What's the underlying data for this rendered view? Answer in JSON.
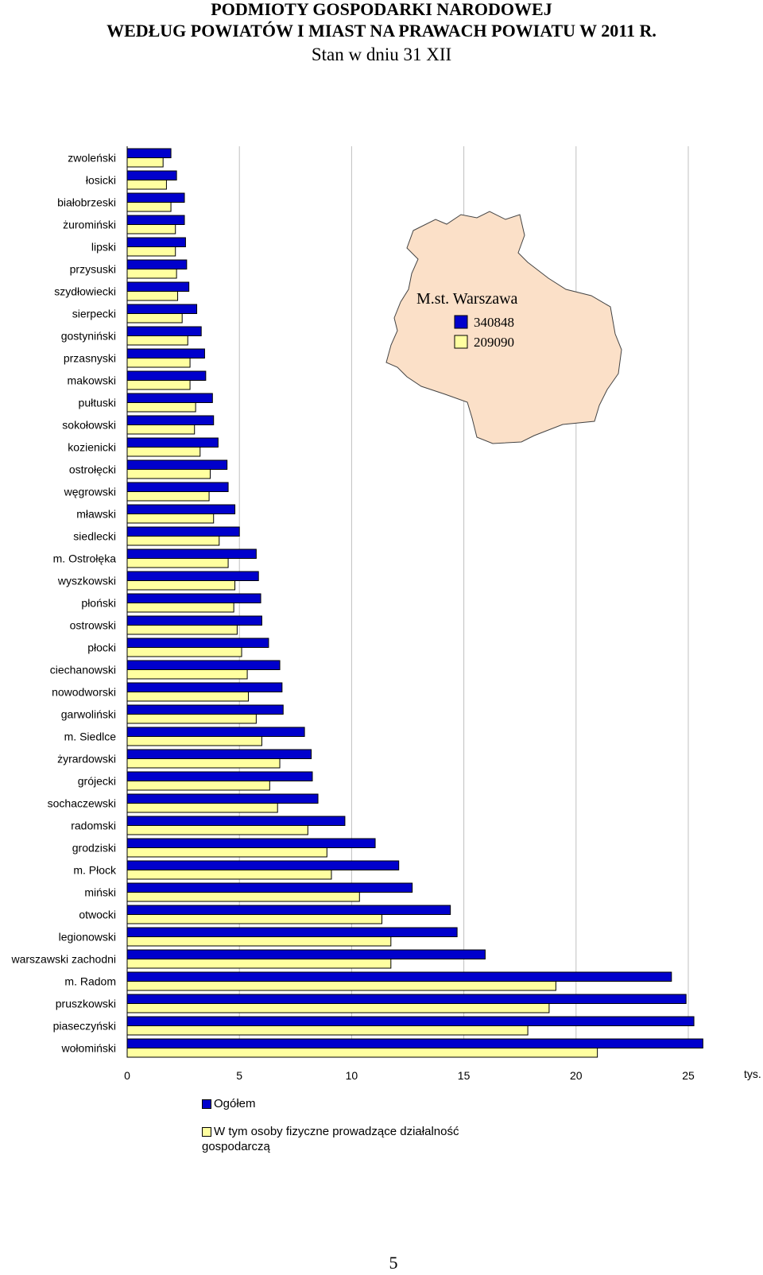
{
  "header": {
    "line1": "PODMIOTY GOSPODARKI NARODOWEJ",
    "line2": "WEDŁUG POWIATÓW I MIAST NA PRAWACH POWIATU W 2011 R.",
    "line3": "Stan w dniu 31 XII"
  },
  "colors": {
    "series1": "#0000cc",
    "series2": "#ffffa0",
    "map_fill": "#fbe0c8",
    "grid": "#c0c0c0"
  },
  "chart_data": {
    "type": "bar",
    "orientation": "horizontal",
    "unit": "tys.",
    "xlim": [
      0,
      25
    ],
    "xticks": [
      0,
      5,
      10,
      15,
      20,
      25
    ],
    "grid": true,
    "categories": [
      "zwoleński",
      "łosicki",
      "białobrzeski",
      "żuromiński",
      "lipski",
      "przysuski",
      "szydłowiecki",
      "sierpecki",
      "gostyniński",
      "przasnyski",
      "makowski",
      "pułtuski",
      "sokołowski",
      "kozienicki",
      "ostrołęcki",
      "węgrowski",
      "mławski",
      "siedlecki",
      "m. Ostrołęka",
      "wyszkowski",
      "płoński",
      "ostrowski",
      "płocki",
      "ciechanowski",
      "nowodworski",
      "garwoliński",
      "m. Siedlce",
      "żyrardowski",
      "grójecki",
      "sochaczewski",
      "radomski",
      "grodziski",
      "m. Płock",
      "miński",
      "otwocki",
      "legionowski",
      "warszawski zachodni",
      "m. Radom",
      "pruszkowski",
      "piaseczyński",
      "wołomiński"
    ],
    "series": [
      {
        "name": "Ogółem",
        "values": [
          1.95,
          2.2,
          2.55,
          2.55,
          2.6,
          2.65,
          2.75,
          3.1,
          3.3,
          3.45,
          3.5,
          3.8,
          3.85,
          4.05,
          4.45,
          4.5,
          4.8,
          5.0,
          5.75,
          5.85,
          5.95,
          6.0,
          6.3,
          6.8,
          6.9,
          6.95,
          7.9,
          8.2,
          8.25,
          8.5,
          9.7,
          11.05,
          12.1,
          12.7,
          14.4,
          14.7,
          15.95,
          24.25,
          24.9,
          25.25,
          25.65
        ]
      },
      {
        "name": "W tym osoby fizyczne prowadzące działalność gospodarczą",
        "values": [
          1.6,
          1.75,
          1.95,
          2.15,
          2.15,
          2.2,
          2.25,
          2.45,
          2.7,
          2.8,
          2.8,
          3.05,
          3.0,
          3.25,
          3.7,
          3.65,
          3.85,
          4.1,
          4.5,
          4.8,
          4.75,
          4.9,
          5.1,
          5.35,
          5.4,
          5.75,
          6.0,
          6.8,
          6.35,
          6.7,
          8.05,
          8.9,
          9.1,
          10.35,
          11.35,
          11.75,
          11.75,
          19.1,
          18.8,
          17.85,
          20.95
        ]
      }
    ],
    "inset": {
      "label": "M.st. Warszawa",
      "values": [
        "340848",
        "209090"
      ]
    }
  },
  "page_number": "5"
}
